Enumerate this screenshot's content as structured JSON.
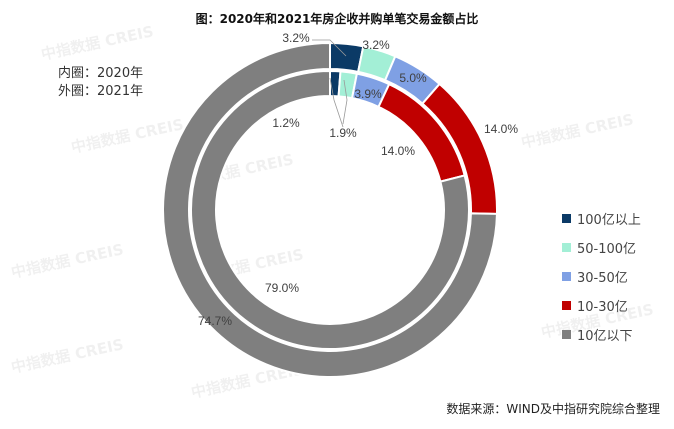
{
  "chart_data": {
    "type": "pie",
    "subtype": "double-donut",
    "title": "图：2020年和2021年房企收并购单笔交易金额占比",
    "categories": [
      "100亿以上",
      "50-100亿",
      "30-50亿",
      "10-30亿",
      "10亿以下"
    ],
    "colors": [
      "#0b3a66",
      "#a3efd6",
      "#7fa0e4",
      "#c00000",
      "#7f7f7f"
    ],
    "series": [
      {
        "name": "内圈：2020年",
        "ring": "inner",
        "values": [
          1.2,
          1.9,
          3.9,
          14.0,
          79.0
        ],
        "labels": [
          "1.2%",
          "1.9%",
          "3.9%",
          "14.0%",
          "79.0%"
        ]
      },
      {
        "name": "外圈：2021年",
        "ring": "outer",
        "values": [
          3.2,
          3.2,
          5.0,
          14.0,
          74.7
        ],
        "labels": [
          "3.2%",
          "3.2%",
          "5.0%",
          "14.0%",
          "74.7%"
        ]
      }
    ],
    "legend_placement": "right",
    "start": "top, clockwise"
  },
  "notes": [
    "内圈：2020年",
    "外圈：2021年"
  ],
  "source": "数据来源：WIND及中指研究院综合整理",
  "watermark": "中指数据 CREIS"
}
